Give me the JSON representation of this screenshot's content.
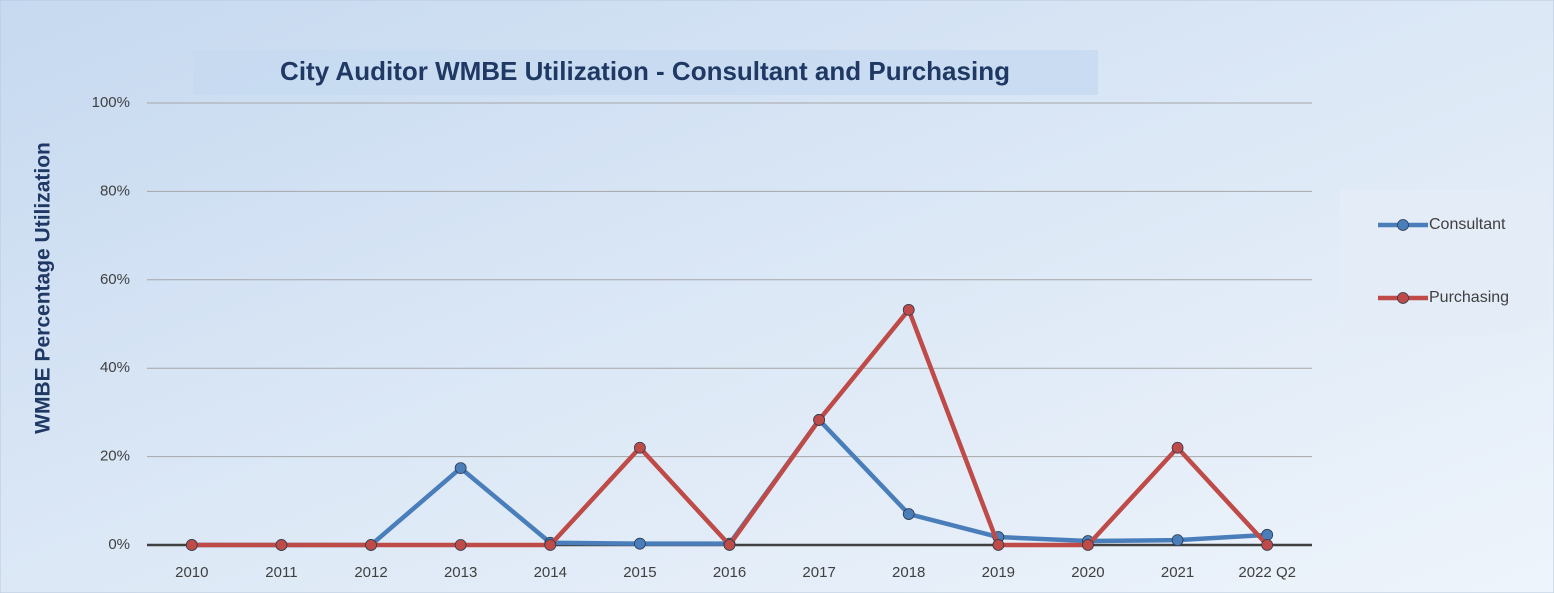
{
  "chart_data": {
    "type": "line",
    "title": "City Auditor WMBE Utilization - Consultant and Purchasing",
    "y_label": "WMBE Percentage Utilization",
    "categories": [
      "2010",
      "2011",
      "2012",
      "2013",
      "2014",
      "2015",
      "2016",
      "2017",
      "2018",
      "2019",
      "2020",
      "2021",
      "2022 Q2"
    ],
    "series": [
      {
        "name": "Consultant",
        "color": "#4a7ebb",
        "values": [
          0,
          0,
          0,
          17.4,
          0.5,
          0.3,
          0.3,
          28.3,
          7.0,
          1.8,
          0.9,
          1.1,
          2.3
        ]
      },
      {
        "name": "Purchasing",
        "color": "#be4b48",
        "values": [
          0,
          0,
          0,
          0,
          0,
          22,
          0,
          28.3,
          53.2,
          0,
          0,
          22,
          0
        ]
      }
    ],
    "ylim": [
      0,
      100
    ],
    "yticks": [
      {
        "value": 0,
        "label": "0%"
      },
      {
        "value": 20,
        "label": "20%"
      },
      {
        "value": 40,
        "label": "40%"
      },
      {
        "value": 60,
        "label": "60%"
      },
      {
        "value": 80,
        "label": "80%"
      },
      {
        "value": 100,
        "label": "100%"
      }
    ],
    "grid": true,
    "legend": "right"
  }
}
